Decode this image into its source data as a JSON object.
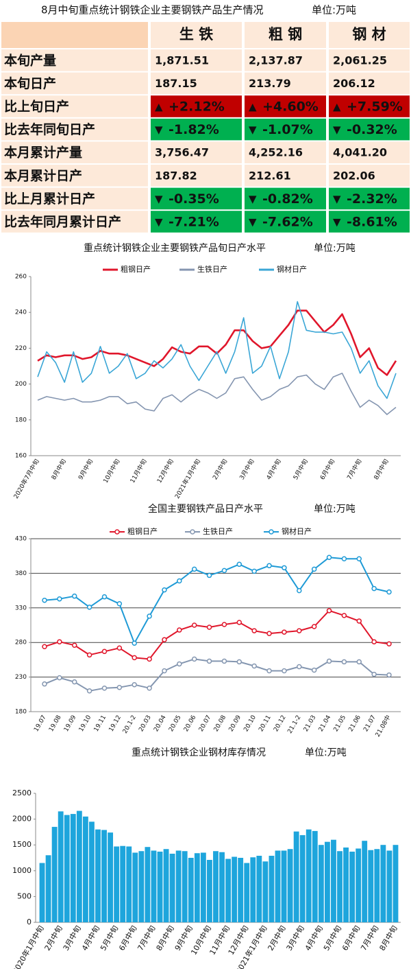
{
  "table": {
    "title": "8月中旬重点统计钢铁企业主要钢铁产品生产情况",
    "unit": "单位:万吨",
    "header": [
      "生 铁",
      "粗 钢",
      "钢 材"
    ],
    "rows": [
      {
        "label": "本旬产量",
        "cells": [
          "1,871.51",
          "2,137.87",
          "2,061.25"
        ]
      },
      {
        "label": "本旬日产",
        "cells": [
          "187.15",
          "213.79",
          "206.12"
        ]
      },
      {
        "label": "比上旬日产",
        "cells": [
          "+2.12%",
          "+4.60%",
          "+7.59%"
        ]
      },
      {
        "label": "比去年同旬日产",
        "cells": [
          "-1.82%",
          "-1.07%",
          "-0.32%"
        ]
      },
      {
        "label": "本月累计产量",
        "cells": [
          "3,756.47",
          "4,252.16",
          "4,041.20"
        ]
      },
      {
        "label": "本月累计日产",
        "cells": [
          "187.82",
          "212.61",
          "202.06"
        ]
      },
      {
        "label": "比上月累计日产",
        "cells": [
          "-0.35%",
          "-0.82%",
          "-2.32%"
        ]
      },
      {
        "label": "比去年同月累计日产",
        "cells": [
          "-7.21%",
          "-7.62%",
          "-8.61%"
        ]
      }
    ]
  },
  "chart_data": [
    {
      "type": "line",
      "title": "重点统计钢铁企业主要钢铁产品旬日产水平",
      "unit": "单位:万吨",
      "categories": [
        "2020年7月中旬",
        null,
        null,
        "8月中旬",
        null,
        null,
        "9月中旬",
        null,
        null,
        "10月中旬",
        null,
        null,
        "11月中旬",
        null,
        null,
        "12月中旬",
        null,
        null,
        "2021年1月中旬",
        null,
        null,
        "2月中旬",
        null,
        null,
        "3月中旬",
        null,
        null,
        "4月中旬",
        null,
        null,
        "5月中旬",
        null,
        null,
        "6月中旬",
        null,
        null,
        "7月中旬",
        null,
        null,
        "8月中旬",
        null
      ],
      "series": [
        {
          "name": "粗钢日产",
          "color": "#e0162b",
          "values": [
            213,
            216,
            215,
            216,
            216,
            214,
            215,
            218.5,
            217,
            217,
            216,
            214,
            212,
            210,
            214,
            220.5,
            218,
            217,
            221,
            221,
            217,
            222,
            230,
            230,
            224,
            220,
            221,
            227,
            233,
            241,
            241,
            235,
            229,
            233,
            239,
            228,
            215,
            220,
            209,
            205,
            213
          ]
        },
        {
          "name": "生铁日产",
          "color": "#8495b0",
          "values": [
            191,
            193,
            192,
            191,
            192,
            190,
            190,
            191,
            193,
            193,
            189,
            190,
            186,
            185,
            192,
            194,
            190,
            194,
            197,
            195,
            192,
            195,
            203,
            204,
            197,
            191,
            193,
            197,
            199,
            204,
            205,
            200,
            197,
            204,
            206,
            196,
            187,
            191,
            188,
            183,
            187
          ]
        },
        {
          "name": "钢材日产",
          "color": "#3aa6d6",
          "values": [
            204,
            218,
            212,
            201,
            218,
            201,
            206,
            221,
            206,
            210,
            217,
            203,
            206,
            213,
            209,
            214,
            222,
            210,
            202,
            210,
            218,
            206,
            218,
            237,
            206,
            210,
            221,
            203,
            218,
            246,
            230,
            229,
            229,
            228,
            229,
            220,
            206,
            213,
            199,
            192,
            206
          ]
        }
      ],
      "ylim": [
        160,
        260
      ],
      "yticks": [
        160,
        180,
        200,
        220,
        240,
        260
      ],
      "grid": false,
      "markers": false
    },
    {
      "type": "line",
      "title": "全国主要钢铁产品日产水平",
      "unit": "单位:万吨",
      "categories": [
        "19.07",
        "19.08",
        "19.09",
        "19.10",
        "19.11",
        "19.12",
        "20.1-2",
        "20.03",
        "20.04",
        "20.05",
        "20.06",
        "20.07",
        "20.08",
        "20.09",
        "20.10",
        "20.11",
        "20.12",
        "21.1-2",
        "21.03",
        "21.04",
        "21.05",
        "21.06",
        "21.07",
        "21.08中"
      ],
      "series": [
        {
          "name": "粗钢日产",
          "color": "#e0162b",
          "values": [
            274,
            281,
            276,
            262,
            267,
            272,
            258,
            256,
            284,
            298,
            305,
            302,
            306,
            309,
            297,
            293,
            295,
            297,
            303,
            326,
            319,
            311,
            281,
            278
          ]
        },
        {
          "name": "生铁日产",
          "color": "#8496b0",
          "values": [
            220,
            229,
            223,
            210,
            214,
            215,
            219,
            214,
            239,
            249,
            256,
            253,
            253,
            252,
            246,
            239,
            239,
            245,
            240,
            253,
            252,
            252,
            234,
            233
          ]
        },
        {
          "name": "钢材日产",
          "color": "#1e9ad6",
          "values": [
            341,
            343,
            347,
            331,
            346,
            336,
            279,
            318,
            356,
            369,
            386,
            377,
            384,
            393,
            383,
            391,
            388,
            355,
            386,
            403,
            401,
            401,
            358,
            353
          ]
        }
      ],
      "ylim": [
        180,
        430
      ],
      "yticks": [
        180,
        230,
        280,
        330,
        380,
        430
      ],
      "grid": true,
      "markers": true
    },
    {
      "type": "bar",
      "title": "重点统计钢铁企业钢材库存情况",
      "unit": "单位:万吨",
      "categories": [
        "2020年1月中旬",
        null,
        null,
        "2月中旬",
        null,
        null,
        "3月中旬",
        null,
        null,
        "4月中旬",
        null,
        null,
        "5月中旬",
        null,
        null,
        "6月中旬",
        null,
        null,
        "7月中旬",
        null,
        null,
        "8月中旬",
        null,
        null,
        "9月中旬",
        null,
        null,
        "10月中旬",
        null,
        null,
        "11月中旬",
        null,
        null,
        "12月中旬",
        null,
        null,
        "2021年1月中旬",
        null,
        null,
        "2月中旬",
        null,
        null,
        "3月中旬",
        null,
        null,
        "4月中旬",
        null,
        null,
        "5月中旬",
        null,
        null,
        "6月中旬",
        null,
        null,
        "7月中旬",
        null,
        null,
        "8月中旬"
      ],
      "values": [
        1150,
        1300,
        1850,
        2150,
        2080,
        2100,
        2160,
        2050,
        1950,
        1800,
        1790,
        1740,
        1470,
        1480,
        1470,
        1350,
        1380,
        1460,
        1390,
        1370,
        1420,
        1330,
        1390,
        1380,
        1250,
        1340,
        1350,
        1210,
        1380,
        1360,
        1230,
        1270,
        1250,
        1150,
        1260,
        1290,
        1180,
        1290,
        1390,
        1390,
        1420,
        1760,
        1690,
        1800,
        1770,
        1500,
        1560,
        1600,
        1380,
        1450,
        1370,
        1430,
        1580,
        1400,
        1420,
        1500,
        1390,
        1500
      ],
      "color": "#1ea5dc",
      "ylim": [
        0,
        2500
      ],
      "yticks": [
        0,
        500,
        1000,
        1500,
        2000,
        2500
      ],
      "grid": false
    }
  ]
}
